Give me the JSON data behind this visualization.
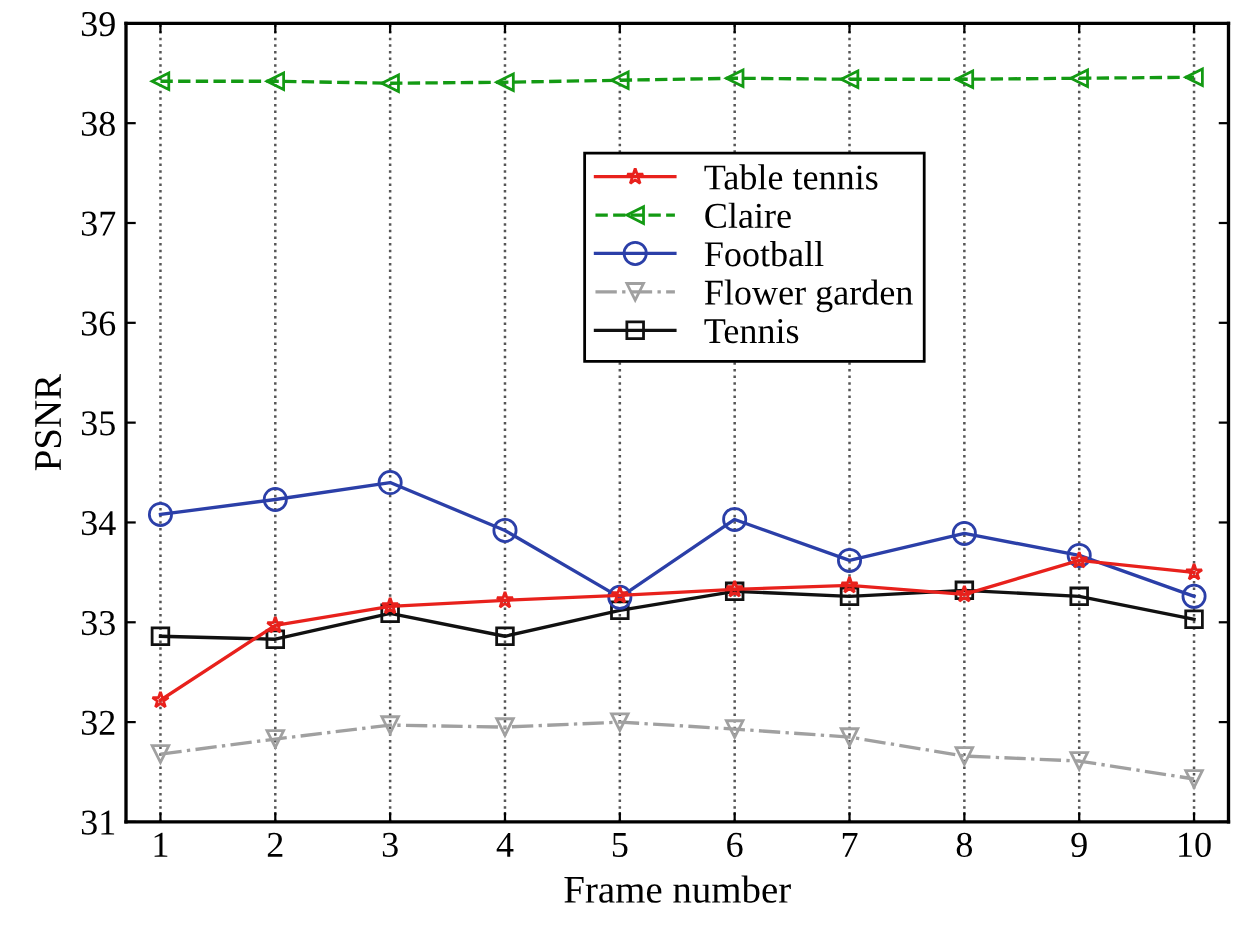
{
  "chart_data": {
    "type": "line",
    "xlabel": "Frame number",
    "ylabel": "PSNR",
    "x": [
      1,
      2,
      3,
      4,
      5,
      6,
      7,
      8,
      9,
      10
    ],
    "xlim": [
      0.7,
      10.3
    ],
    "xticks": [
      1,
      2,
      3,
      4,
      5,
      6,
      7,
      8,
      9,
      10
    ],
    "ylim": [
      31,
      39
    ],
    "yticks": [
      31,
      32,
      33,
      34,
      35,
      36,
      37,
      38,
      39
    ],
    "grid": "x",
    "legend": "top",
    "series": [
      {
        "name": "Table tennis",
        "color": "#e8211c",
        "marker": "star",
        "line_style": "solid",
        "values": [
          32.22,
          32.97,
          33.16,
          33.22,
          33.27,
          33.33,
          33.37,
          33.28,
          33.62,
          33.5
        ]
      },
      {
        "name": "Claire",
        "color": "#139a13",
        "marker": "triangle_left",
        "line_style": "dashed",
        "values": [
          38.42,
          38.42,
          38.4,
          38.41,
          38.43,
          38.45,
          38.44,
          38.44,
          38.45,
          38.46
        ]
      },
      {
        "name": "Football",
        "color": "#2b3fa8",
        "marker": "circle",
        "line_style": "solid",
        "values": [
          34.08,
          34.23,
          34.4,
          33.92,
          33.25,
          34.03,
          33.62,
          33.89,
          33.67,
          33.26
        ]
      },
      {
        "name": "Flower garden",
        "color": "#a0a0a0",
        "marker": "triangle",
        "line_style": "dashdot",
        "values": [
          31.68,
          31.83,
          31.97,
          31.95,
          32.0,
          31.93,
          31.85,
          31.66,
          31.61,
          31.43
        ]
      },
      {
        "name": "Tennis",
        "color": "#111111",
        "marker": "square",
        "line_style": "solid",
        "values": [
          32.86,
          32.83,
          33.09,
          32.86,
          33.12,
          33.31,
          33.26,
          33.32,
          33.26,
          33.03
        ]
      }
    ]
  }
}
